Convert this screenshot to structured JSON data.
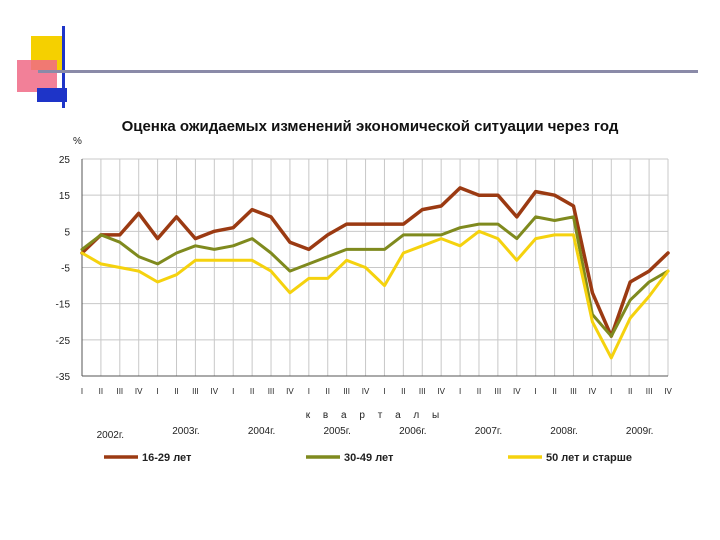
{
  "colors": {
    "deco_yellow": "#f5d000",
    "deco_pink": "#f06a86",
    "deco_blue": "#1e34c8",
    "deco_rule": "#8a8aa8"
  },
  "chart_data": {
    "type": "line",
    "title": "Оценка ожидаемых изменений экономической ситуации через год",
    "ylabel": "%",
    "xlabel": "к в а р т а л ы",
    "ylim": [
      -35,
      25
    ],
    "yticks": [
      25,
      15,
      5,
      -5,
      -15,
      -25,
      -35
    ],
    "grid": true,
    "legend_position": "bottom",
    "x": [
      "I",
      "II",
      "III",
      "IV",
      "I",
      "II",
      "III",
      "IV",
      "I",
      "II",
      "III",
      "IV",
      "I",
      "II",
      "III",
      "IV",
      "I",
      "II",
      "III",
      "IV",
      "I",
      "II",
      "III",
      "IV",
      "I",
      "II",
      "III",
      "IV",
      "I",
      "II",
      "III",
      "IV"
    ],
    "years": [
      {
        "label": "2002г.",
        "first_index": 0
      },
      {
        "label": "2003г.",
        "first_index": 4
      },
      {
        "label": "2004г.",
        "first_index": 8
      },
      {
        "label": "2005г.",
        "first_index": 12
      },
      {
        "label": "2006г.",
        "first_index": 16
      },
      {
        "label": "2007г.",
        "first_index": 20
      },
      {
        "label": "2008г.",
        "first_index": 24
      },
      {
        "label": "2009г.",
        "first_index": 28
      }
    ],
    "series": [
      {
        "name": "16-29 лет",
        "color": "#9b3a12",
        "values": [
          -1,
          4,
          4,
          10,
          3,
          9,
          3,
          5,
          6,
          11,
          9,
          2,
          0,
          4,
          7,
          7,
          7,
          7,
          11,
          12,
          17,
          15,
          15,
          9,
          16,
          15,
          12,
          -12,
          -24,
          -9,
          -6,
          -1
        ]
      },
      {
        "name": "30-49 лет",
        "color": "#7f8a1e",
        "values": [
          0,
          4,
          2,
          -2,
          -4,
          -1,
          1,
          0,
          1,
          3,
          -1,
          -6,
          -4,
          -2,
          0,
          0,
          0,
          4,
          4,
          4,
          6,
          7,
          7,
          3,
          9,
          8,
          9,
          -18,
          -24,
          -14,
          -9,
          -6
        ]
      },
      {
        "name": "50 лет и старше",
        "color": "#f5d20e",
        "values": [
          -1,
          -4,
          -5,
          -6,
          -9,
          -7,
          -3,
          -3,
          -3,
          -3,
          -6,
          -12,
          -8,
          -8,
          -3,
          -5,
          -10,
          -1,
          1,
          3,
          1,
          5,
          3,
          -3,
          3,
          4,
          4,
          -20,
          -30,
          -19,
          -13,
          -6
        ]
      }
    ]
  }
}
